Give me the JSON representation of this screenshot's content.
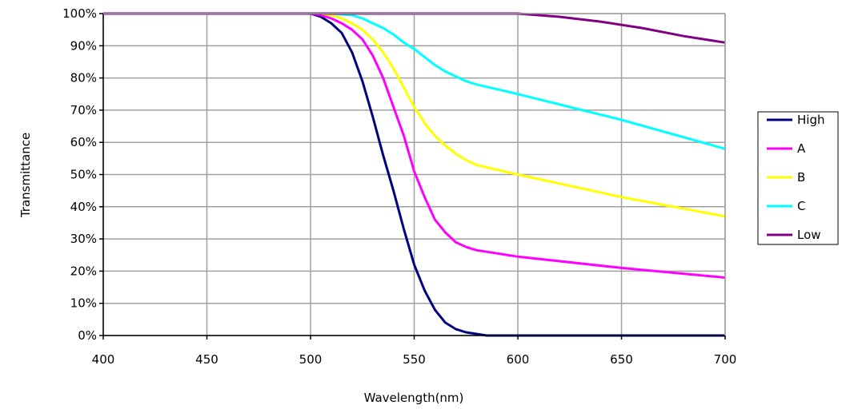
{
  "chart_data": {
    "type": "line",
    "title": "",
    "xlabel": "Wavelength(nm)",
    "ylabel": "Transmittance",
    "xlim": [
      400,
      700
    ],
    "ylim": [
      0,
      100
    ],
    "xticks": [
      400,
      450,
      500,
      550,
      600,
      650,
      700
    ],
    "xtick_labels": [
      "400",
      "450",
      "500",
      "550",
      "600",
      "650",
      "700"
    ],
    "yticks": [
      0,
      10,
      20,
      30,
      40,
      50,
      60,
      70,
      80,
      90,
      100
    ],
    "ytick_labels": [
      "0%",
      "10%",
      "20%",
      "30%",
      "40%",
      "50%",
      "60%",
      "70%",
      "80%",
      "90%",
      "100%"
    ],
    "grid": true,
    "legend_position": "right",
    "series": [
      {
        "name": "High",
        "color": "#000080",
        "x": [
          400,
          500,
          505,
          510,
          515,
          520,
          525,
          530,
          535,
          540,
          545,
          550,
          555,
          560,
          565,
          570,
          575,
          580,
          585,
          590,
          600,
          650,
          700
        ],
        "y": [
          100,
          100,
          99,
          97,
          94,
          88,
          79,
          68,
          56,
          45,
          33,
          22,
          14,
          8,
          4,
          2,
          1,
          0.5,
          0,
          0,
          0,
          0,
          0
        ]
      },
      {
        "name": "A",
        "color": "#FF00FF",
        "x": [
          400,
          500,
          505,
          510,
          515,
          520,
          525,
          530,
          535,
          540,
          545,
          550,
          555,
          560,
          565,
          570,
          575,
          580,
          590,
          600,
          650,
          700
        ],
        "y": [
          100,
          100,
          99.5,
          98.5,
          97,
          95,
          92,
          87,
          80,
          71,
          62,
          51,
          43,
          36,
          32,
          29,
          27.5,
          26.5,
          25.5,
          24.5,
          21,
          18
        ]
      },
      {
        "name": "B",
        "color": "#FFFF00",
        "x": [
          400,
          500,
          505,
          510,
          515,
          520,
          525,
          530,
          535,
          540,
          545,
          550,
          555,
          560,
          565,
          570,
          575,
          580,
          590,
          600,
          650,
          700
        ],
        "y": [
          100,
          100,
          100,
          99.5,
          98.5,
          97,
          95,
          92,
          88,
          83,
          77,
          71,
          66,
          62,
          59,
          56.5,
          54.5,
          53,
          51.5,
          50,
          43,
          37
        ]
      },
      {
        "name": "C",
        "color": "#00FFFF",
        "x": [
          400,
          500,
          510,
          520,
          525,
          530,
          535,
          540,
          545,
          550,
          555,
          560,
          565,
          570,
          575,
          580,
          590,
          600,
          650,
          700
        ],
        "y": [
          100,
          100,
          100,
          99.5,
          98.5,
          97,
          95.5,
          93.5,
          91,
          89,
          86.5,
          84,
          82,
          80.5,
          79,
          78,
          76.5,
          75,
          67,
          58
        ]
      },
      {
        "name": "Low",
        "color": "#800080",
        "x": [
          400,
          500,
          550,
          600,
          620,
          640,
          660,
          680,
          700
        ],
        "y": [
          100,
          100,
          100,
          100,
          99,
          97.5,
          95.5,
          93,
          91
        ]
      }
    ]
  }
}
